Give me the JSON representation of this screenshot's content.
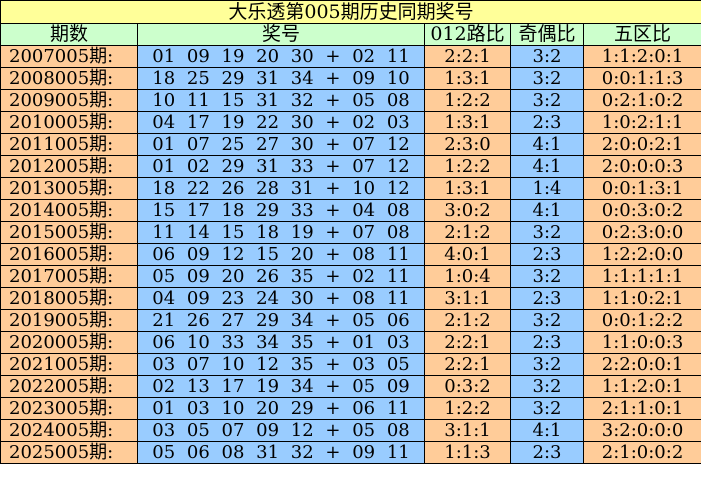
{
  "title": "大乐透第005期历史同期奖号",
  "headers": [
    "期数",
    "奖号",
    "012路比",
    "奇偶比",
    "五区比"
  ],
  "colors": {
    "title_bg": "#FFFF99",
    "header_bg": "#CCFFCC",
    "orange": "#FFCC99",
    "blue": "#99CCFF"
  },
  "rows": [
    {
      "period": "2007005期:",
      "numbers": "01 09 19 20 30 + 02 11",
      "route012": "2:2:1",
      "odd_even": "3:2",
      "zones": "1:1:2:0:1"
    },
    {
      "period": "2008005期:",
      "numbers": "18 25 29 31 34 + 09 10",
      "route012": "1:3:1",
      "odd_even": "3:2",
      "zones": "0:0:1:1:3"
    },
    {
      "period": "2009005期:",
      "numbers": "10 11 15 31 32 + 05 08",
      "route012": "1:2:2",
      "odd_even": "3:2",
      "zones": "0:2:1:0:2"
    },
    {
      "period": "2010005期:",
      "numbers": "04 17 19 22 30 + 02 03",
      "route012": "1:3:1",
      "odd_even": "2:3",
      "zones": "1:0:2:1:1"
    },
    {
      "period": "2011005期:",
      "numbers": "01 07 25 27 30 + 07 12",
      "route012": "2:3:0",
      "odd_even": "4:1",
      "zones": "2:0:0:2:1"
    },
    {
      "period": "2012005期:",
      "numbers": "01 02 29 31 33 + 07 12",
      "route012": "1:2:2",
      "odd_even": "4:1",
      "zones": "2:0:0:0:3"
    },
    {
      "period": "2013005期:",
      "numbers": "18 22 26 28 31 + 10 12",
      "route012": "1:3:1",
      "odd_even": "1:4",
      "zones": "0:0:1:3:1"
    },
    {
      "period": "2014005期:",
      "numbers": "15 17 18 29 33 + 04 08",
      "route012": "3:0:2",
      "odd_even": "4:1",
      "zones": "0:0:3:0:2"
    },
    {
      "period": "2015005期:",
      "numbers": "11 14 15 18 19 + 07 08",
      "route012": "2:1:2",
      "odd_even": "3:2",
      "zones": "0:2:3:0:0"
    },
    {
      "period": "2016005期:",
      "numbers": "06 09 12 15 20 + 08 11",
      "route012": "4:0:1",
      "odd_even": "2:3",
      "zones": "1:2:2:0:0"
    },
    {
      "period": "2017005期:",
      "numbers": "05 09 20 26 35 + 02 11",
      "route012": "1:0:4",
      "odd_even": "3:2",
      "zones": "1:1:1:1:1"
    },
    {
      "period": "2018005期:",
      "numbers": "04 09 23 24 30 + 08 11",
      "route012": "3:1:1",
      "odd_even": "2:3",
      "zones": "1:1:0:2:1"
    },
    {
      "period": "2019005期:",
      "numbers": "21 26 27 29 34 + 05 06",
      "route012": "2:1:2",
      "odd_even": "3:2",
      "zones": "0:0:1:2:2"
    },
    {
      "period": "2020005期:",
      "numbers": "06 10 33 34 35 + 01 03",
      "route012": "2:2:1",
      "odd_even": "2:3",
      "zones": "1:1:0:0:3"
    },
    {
      "period": "2021005期:",
      "numbers": "03 07 10 12 35 + 03 05",
      "route012": "2:2:1",
      "odd_even": "3:2",
      "zones": "2:2:0:0:1"
    },
    {
      "period": "2022005期:",
      "numbers": "02 13 17 19 34 + 05 09",
      "route012": "0:3:2",
      "odd_even": "3:2",
      "zones": "1:1:2:0:1"
    },
    {
      "period": "2023005期:",
      "numbers": "01 03 10 20 29 + 06 11",
      "route012": "1:2:2",
      "odd_even": "3:2",
      "zones": "2:1:1:0:1"
    },
    {
      "period": "2024005期:",
      "numbers": "03 05 07 09 12 + 05 08",
      "route012": "3:1:1",
      "odd_even": "4:1",
      "zones": "3:2:0:0:0"
    },
    {
      "period": "2025005期:",
      "numbers": "05 06 08 31 32 + 09 11",
      "route012": "1:1:3",
      "odd_even": "2:3",
      "zones": "2:1:0:0:2"
    }
  ]
}
